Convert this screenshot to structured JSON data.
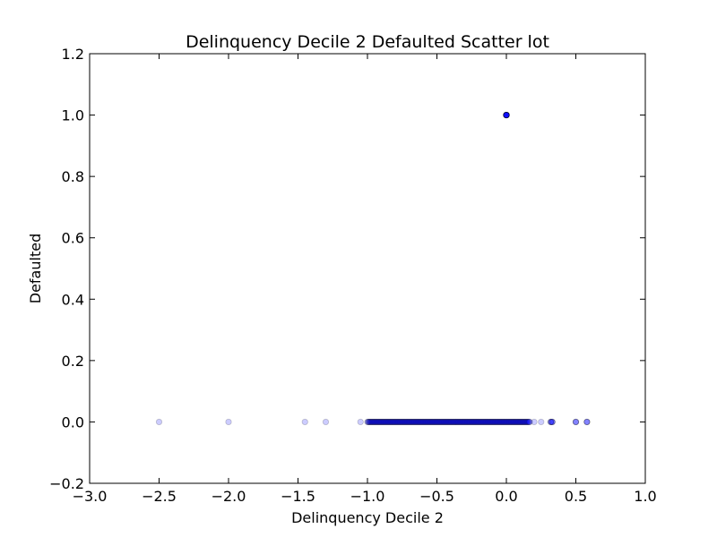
{
  "chart_data": {
    "type": "scatter",
    "title": "Delinquency Decile 2 Defaulted Scatter lot",
    "xlabel": "Delinquency Decile 2",
    "ylabel": "Defaulted",
    "xlim": [
      -3.0,
      1.0
    ],
    "ylim": [
      -0.2,
      1.2
    ],
    "x_ticks": [
      "−3.0",
      "−2.5",
      "−2.0",
      "−1.5",
      "−1.0",
      "−0.5",
      "0.0",
      "0.5",
      "1.0"
    ],
    "y_ticks": [
      "−0.2",
      "0.0",
      "0.2",
      "0.4",
      "0.6",
      "0.8",
      "1.0",
      "1.2"
    ],
    "grid": false,
    "point_color": "#0000ff",
    "point_alpha": 0.2,
    "points": [
      {
        "x": -2.5,
        "y": 0.0
      },
      {
        "x": -2.0,
        "y": 0.0
      },
      {
        "x": -1.45,
        "y": 0.0
      },
      {
        "x": -1.3,
        "y": 0.0
      },
      {
        "x": -1.05,
        "y": 0.0
      },
      {
        "x": 0.2,
        "y": 0.0
      },
      {
        "x": 0.25,
        "y": 0.0
      },
      {
        "x": 0.32,
        "y": 0.0
      },
      {
        "x": 0.33,
        "y": 0.0
      },
      {
        "x": 0.5,
        "y": 0.0
      },
      {
        "x": 0.58,
        "y": 0.0
      },
      {
        "x": 0.0,
        "y": 1.0
      }
    ],
    "dense_range": {
      "x_start": -1.0,
      "x_end": 0.17,
      "y": 0.0
    }
  }
}
